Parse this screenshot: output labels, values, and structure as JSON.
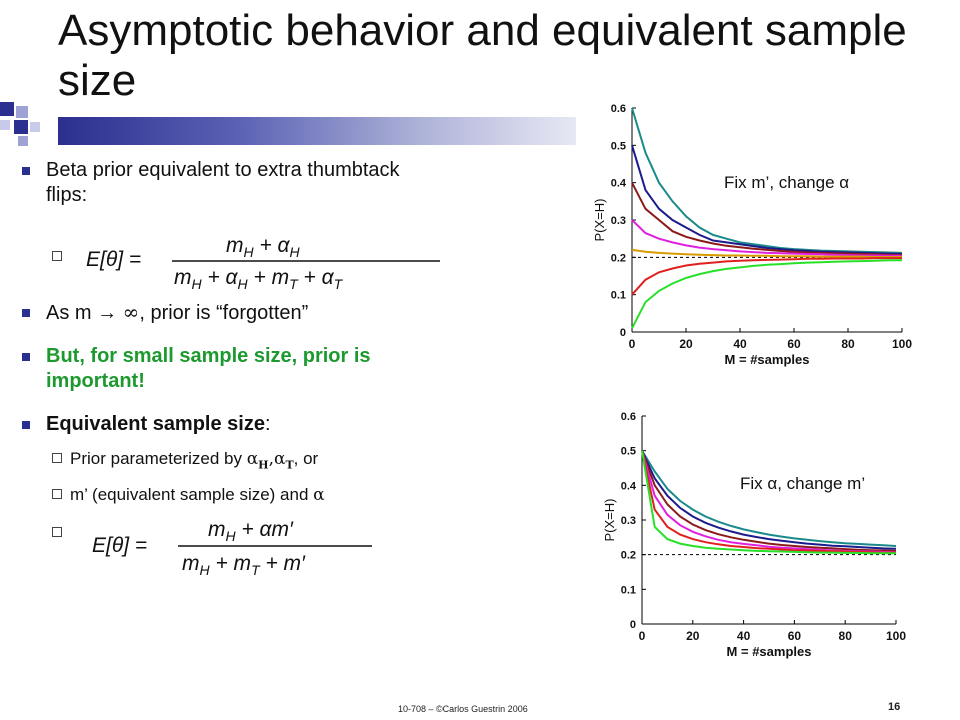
{
  "slide": {
    "title": "Asymptotic behavior and equivalent sample size",
    "footer": "10-708 – ©Carlos Guestrin 2006",
    "page_number": "16"
  },
  "bullets": {
    "b1": "Beta prior equivalent to extra thumbtack flips:",
    "b2_prefix": "As m → ",
    "b2_suffix": ", prior is “forgotten”",
    "b3": "But, for small sample size, prior is important!",
    "b4_bold": "Equivalent sample size",
    "b4_rest": ":",
    "sub1_prefix": "Prior parameterized by ",
    "sub1_suffix": ", or",
    "sub2_prefix": "m’ (equivalent sample size) and "
  },
  "charts": {
    "top_label": "Fix m’, change α",
    "bottom_label": "Fix α, change m’"
  },
  "chart_data": [
    {
      "type": "line",
      "xlabel": "M = #samples",
      "ylabel": "P(X=H)",
      "xlim": [
        0,
        100
      ],
      "ylim": [
        0,
        0.6
      ],
      "xticks": [
        0,
        20,
        40,
        60,
        80,
        100
      ],
      "yticks": [
        0,
        0.1,
        0.2,
        0.3,
        0.4,
        0.5,
        0.6
      ],
      "ytick_labels": [
        "0",
        "0.1",
        "0.2",
        "0.3",
        "0.4",
        "0.5",
        "0.6"
      ],
      "reference_line": 0.2,
      "series": [
        {
          "color": "#1a8a8a",
          "values": [
            0.6,
            0.48,
            0.4,
            0.35,
            0.31,
            0.28,
            0.26,
            0.25,
            0.24,
            0.235,
            0.23,
            0.225,
            0.222,
            0.22,
            0.218,
            0.217,
            0.216,
            0.215,
            0.214,
            0.213,
            0.212
          ]
        },
        {
          "color": "#1b1b8c",
          "values": [
            0.5,
            0.38,
            0.33,
            0.3,
            0.28,
            0.26,
            0.245,
            0.24,
            0.235,
            0.23,
            0.225,
            0.222,
            0.219,
            0.217,
            0.215,
            0.214,
            0.213,
            0.212,
            0.211,
            0.21,
            0.209
          ]
        },
        {
          "color": "#8b1a1a",
          "values": [
            0.4,
            0.33,
            0.3,
            0.27,
            0.255,
            0.245,
            0.237,
            0.231,
            0.227,
            0.223,
            0.22,
            0.217,
            0.215,
            0.213,
            0.212,
            0.211,
            0.21,
            0.209,
            0.208,
            0.207,
            0.206
          ]
        },
        {
          "color": "#e020e0",
          "values": [
            0.3,
            0.265,
            0.25,
            0.24,
            0.232,
            0.226,
            0.222,
            0.219,
            0.216,
            0.214,
            0.212,
            0.211,
            0.21,
            0.209,
            0.208,
            0.207,
            0.206,
            0.205,
            0.205,
            0.204,
            0.204
          ]
        },
        {
          "color": "#d89b00",
          "values": [
            0.22,
            0.215,
            0.212,
            0.21,
            0.208,
            0.207,
            0.206,
            0.205,
            0.205,
            0.204,
            0.204,
            0.203,
            0.203,
            0.203,
            0.202,
            0.202,
            0.202,
            0.202,
            0.201,
            0.201,
            0.201
          ]
        },
        {
          "color": "#e0201e",
          "values": [
            0.1,
            0.14,
            0.16,
            0.17,
            0.178,
            0.183,
            0.186,
            0.189,
            0.191,
            0.192,
            0.193,
            0.194,
            0.195,
            0.196,
            0.196,
            0.197,
            0.197,
            0.197,
            0.198,
            0.198,
            0.198
          ]
        },
        {
          "color": "#28e028",
          "values": [
            0.01,
            0.08,
            0.11,
            0.13,
            0.145,
            0.155,
            0.163,
            0.169,
            0.173,
            0.177,
            0.18,
            0.182,
            0.184,
            0.186,
            0.187,
            0.188,
            0.189,
            0.19,
            0.191,
            0.192,
            0.192
          ]
        }
      ]
    },
    {
      "type": "line",
      "xlabel": "M = #samples",
      "ylabel": "P(X=H)",
      "xlim": [
        0,
        100
      ],
      "ylim": [
        0,
        0.6
      ],
      "xticks": [
        0,
        20,
        40,
        60,
        80,
        100
      ],
      "yticks": [
        0,
        0.1,
        0.2,
        0.3,
        0.4,
        0.5,
        0.6
      ],
      "ytick_labels": [
        "0",
        "0.1",
        "0.2",
        "0.3",
        "0.4",
        "0.5",
        "0.6"
      ],
      "reference_line": 0.2,
      "series": [
        {
          "color": "#1a8a8a",
          "values": [
            0.5,
            0.44,
            0.39,
            0.355,
            0.33,
            0.31,
            0.295,
            0.283,
            0.273,
            0.265,
            0.258,
            0.252,
            0.247,
            0.243,
            0.239,
            0.236,
            0.233,
            0.231,
            0.229,
            0.227,
            0.225
          ]
        },
        {
          "color": "#1b1b8c",
          "values": [
            0.5,
            0.42,
            0.37,
            0.335,
            0.31,
            0.292,
            0.278,
            0.267,
            0.258,
            0.251,
            0.245,
            0.24,
            0.236,
            0.232,
            0.229,
            0.226,
            0.224,
            0.222,
            0.22,
            0.218,
            0.217
          ]
        },
        {
          "color": "#8b1a1a",
          "values": [
            0.5,
            0.4,
            0.345,
            0.31,
            0.287,
            0.271,
            0.259,
            0.25,
            0.243,
            0.237,
            0.232,
            0.228,
            0.225,
            0.222,
            0.22,
            0.218,
            0.216,
            0.214,
            0.213,
            0.212,
            0.211
          ]
        },
        {
          "color": "#e020e0",
          "values": [
            0.5,
            0.37,
            0.315,
            0.285,
            0.266,
            0.253,
            0.243,
            0.236,
            0.231,
            0.227,
            0.223,
            0.22,
            0.218,
            0.216,
            0.214,
            0.212,
            0.211,
            0.21,
            0.209,
            0.208,
            0.207
          ]
        },
        {
          "color": "#e0201e",
          "values": [
            0.5,
            0.33,
            0.28,
            0.258,
            0.245,
            0.236,
            0.23,
            0.225,
            0.222,
            0.219,
            0.217,
            0.215,
            0.213,
            0.212,
            0.211,
            0.21,
            0.209,
            0.208,
            0.207,
            0.206,
            0.206
          ]
        },
        {
          "color": "#28e028",
          "values": [
            0.5,
            0.28,
            0.245,
            0.232,
            0.225,
            0.22,
            0.217,
            0.215,
            0.213,
            0.211,
            0.21,
            0.209,
            0.208,
            0.207,
            0.206,
            0.206,
            0.205,
            0.205,
            0.204,
            0.204,
            0.204
          ]
        }
      ]
    }
  ]
}
